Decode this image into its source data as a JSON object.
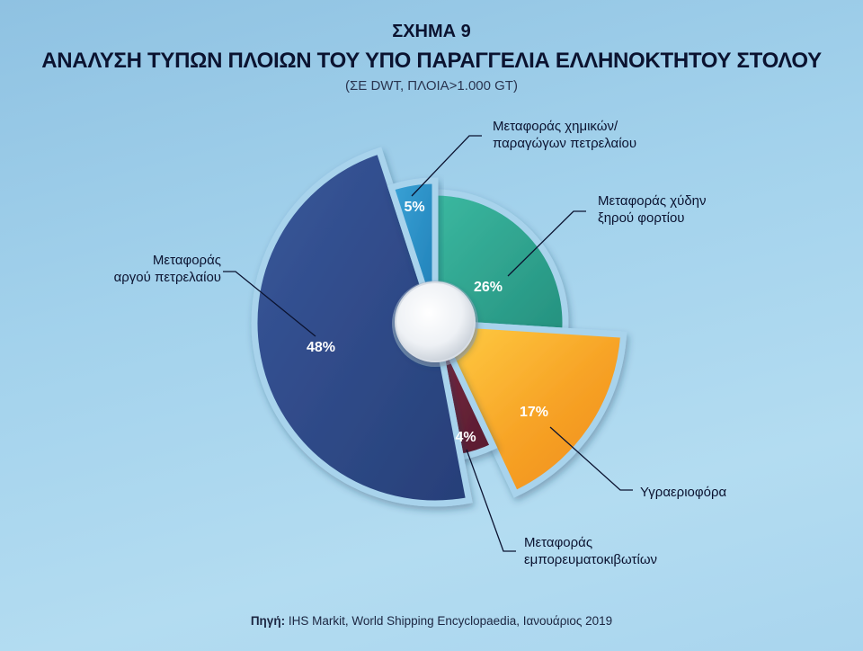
{
  "figure": {
    "label": "ΣΧΗΜΑ 9",
    "title": "ΑΝΑΛΥΣΗ ΤΥΠΩΝ ΠΛΟΙΩΝ ΤΟΥ ΥΠΟ ΠΑΡΑΓΓΕΛΙΑ ΕΛΛΗΝΟΚΤΗΤΟΥ ΣΤΟΛΟΥ",
    "subtitle": "(ΣΕ DWT, ΠΛΟΙΑ>1.000 GT)",
    "source_label": "Πηγή:",
    "source_text": "IHS Markit, World Shipping Encyclopaedia, Ιανουάριος 2019"
  },
  "chart_data": {
    "type": "pie",
    "title": "ΑΝΑΛΥΣΗ ΤΥΠΩΝ ΠΛΟΙΩΝ ΤΟΥ ΥΠΟ ΠΑΡΑΓΓΕΛΙΑ ΕΛΛΗΝΟΚΤΗΤΟΥ ΣΤΟΛΟΥ",
    "subtitle": "(ΣΕ DWT, ΠΛΟΙΑ>1.000 GT)",
    "unit": "%",
    "slices": [
      {
        "label": "Μεταφοράς χύδην ξηρού φορτίου",
        "label_lines": [
          "Μεταφοράς χύδην",
          "ξηρού φορτίου"
        ],
        "value": 26,
        "value_label": "26%",
        "color": "#2fa793"
      },
      {
        "label": "Υγραεριοφόρα",
        "label_lines": [
          "Υγραεριοφόρα"
        ],
        "value": 17,
        "value_label": "17%",
        "color": "#f5a01e"
      },
      {
        "label": "Μεταφοράς εμπορευματοκιβωτίων",
        "label_lines": [
          "Μεταφοράς",
          "εμπορευματοκιβωτίων"
        ],
        "value": 4,
        "value_label": "4%",
        "color": "#6b2238"
      },
      {
        "label": "Μεταφοράς αργού πετρελαίου",
        "label_lines": [
          "Μεταφοράς",
          "αργού πετρελαίου"
        ],
        "value": 48,
        "value_label": "48%",
        "color": "#2f4c8c"
      },
      {
        "label": "Μεταφοράς χημικών/ παραγώγων πετρελαίου",
        "label_lines": [
          "Μεταφοράς χημικών/",
          "παραγώγων πετρελαίου"
        ],
        "value": 5,
        "value_label": "5%",
        "color": "#2a8cc4"
      }
    ]
  }
}
